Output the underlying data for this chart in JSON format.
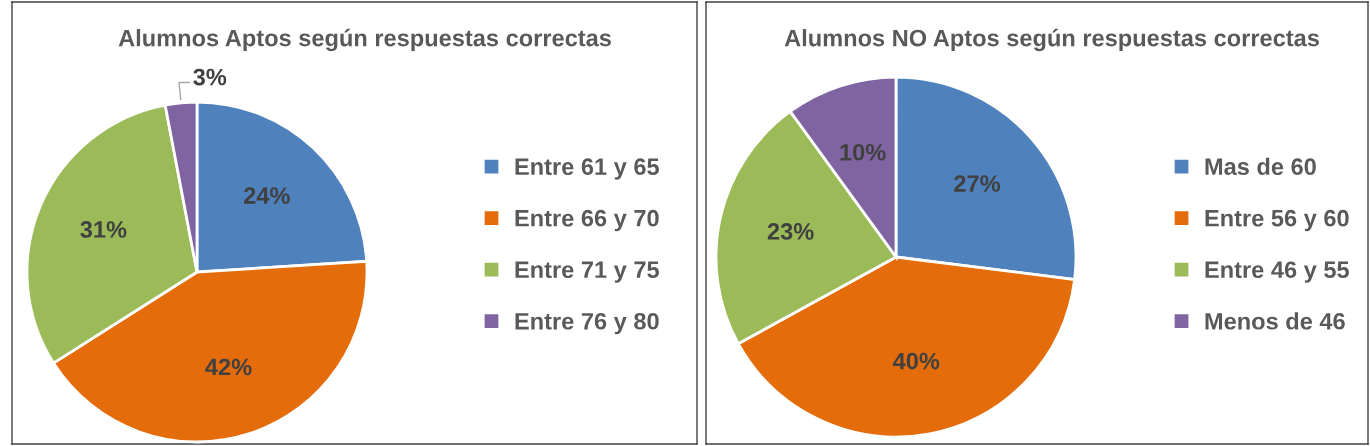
{
  "chart_data": [
    {
      "type": "pie",
      "title": "Alumnos Aptos según respuestas correctas",
      "categories": [
        "Entre 61 y 65",
        "Entre 66 y 70",
        "Entre 71 y 75",
        "Entre 76 y 80"
      ],
      "values": [
        24,
        42,
        31,
        3
      ],
      "colors": [
        "#4f81bd",
        "#e46c0a",
        "#9bbb59",
        "#8064a2"
      ],
      "value_labels": [
        "24%",
        "42%",
        "31%",
        "3%"
      ],
      "legend": "right"
    },
    {
      "type": "pie",
      "title": "Alumnos NO Aptos según respuestas correctas",
      "categories": [
        "Mas de 60",
        "Entre 56 y 60",
        "Entre 46 y 55",
        "Menos de 46"
      ],
      "values": [
        27,
        40,
        23,
        10
      ],
      "colors": [
        "#4f81bd",
        "#e46c0a",
        "#9bbb59",
        "#8064a2"
      ],
      "value_labels": [
        "27%",
        "40%",
        "23%",
        "10%"
      ],
      "legend": "right"
    }
  ]
}
